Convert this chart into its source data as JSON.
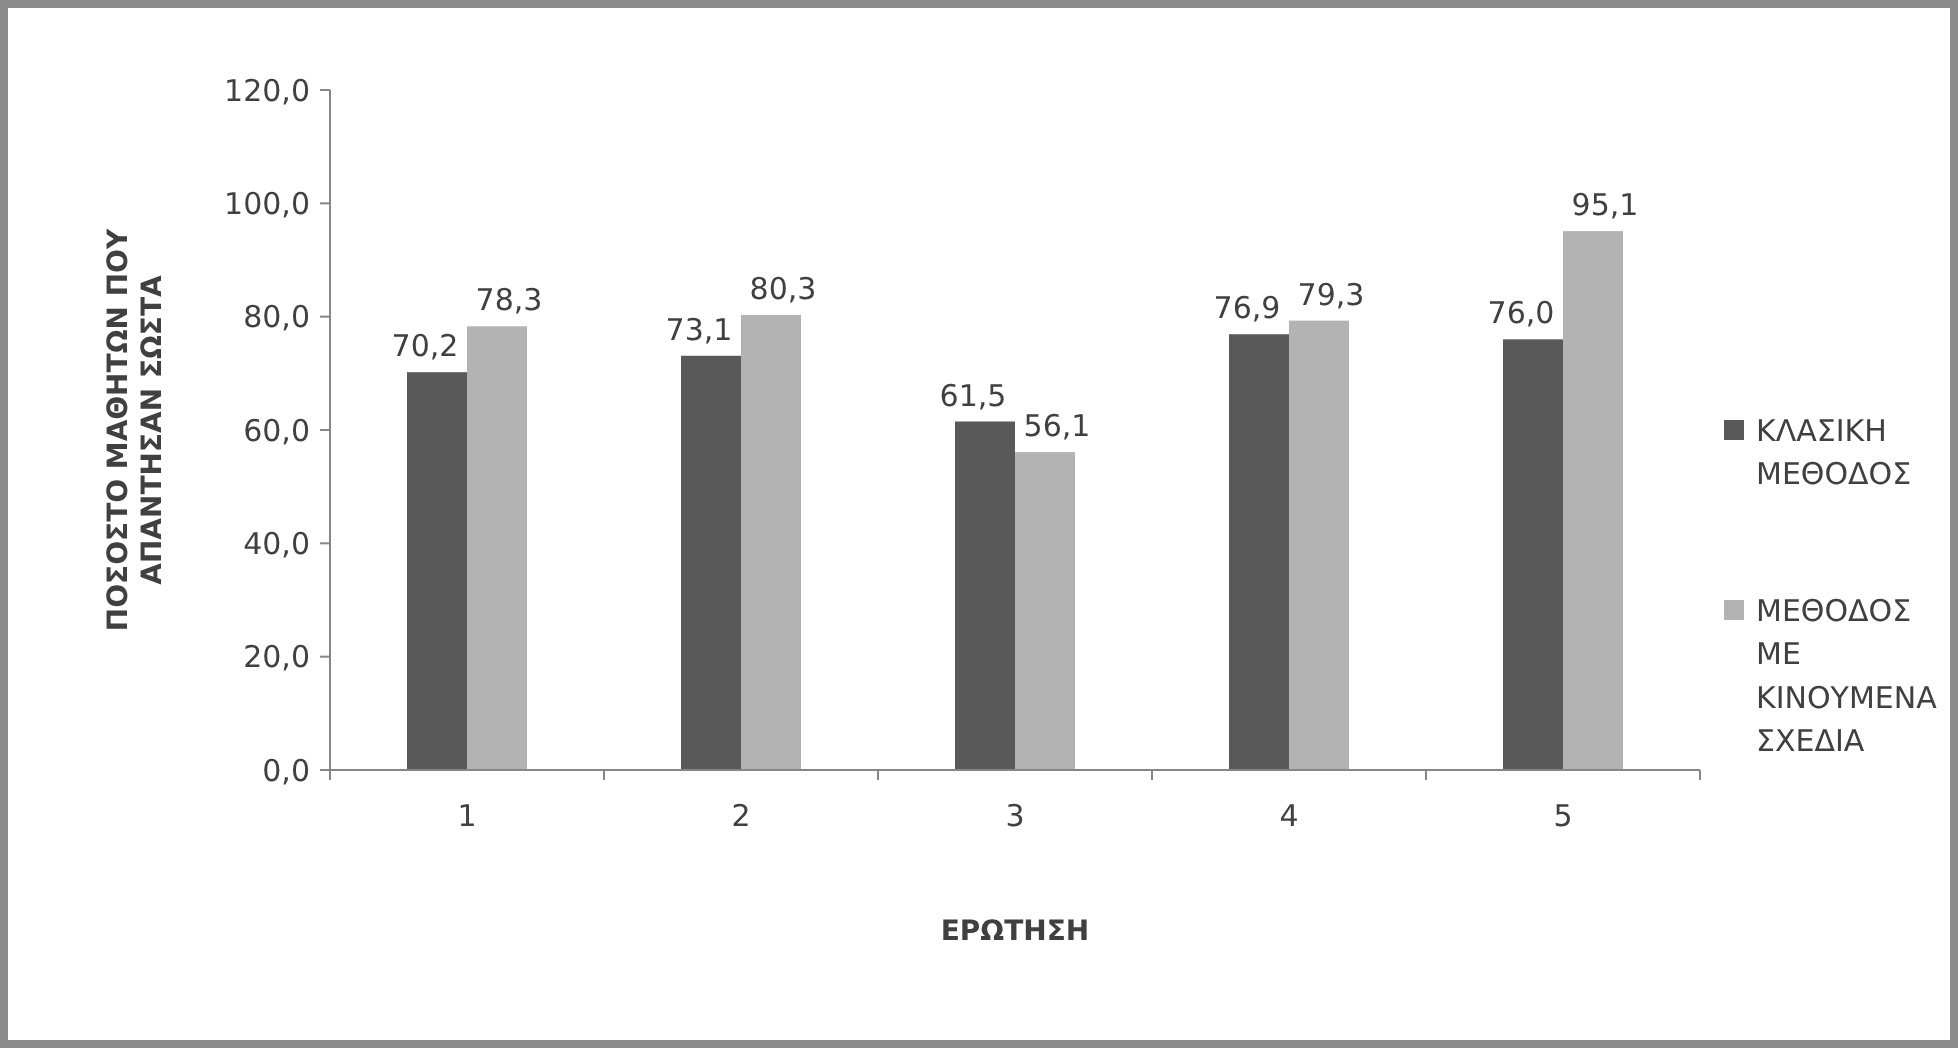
{
  "chart_data": {
    "type": "bar",
    "xlabel": "ΕΡΩΤΗΣΗ",
    "ylabel": "ΠΟΣΟΣΤΟ ΜΑΘΗΤΩΝ ΠΟΥ ΑΠΑΝΤΗΣΑΝ ΣΩΣΤΑ",
    "categories": [
      "1",
      "2",
      "3",
      "4",
      "5"
    ],
    "series": [
      {
        "name": "ΚΛΑΣΙΚΗ ΜΕΘΟΔΟΣ",
        "color": "#595959",
        "values": [
          70.2,
          73.1,
          61.5,
          76.9,
          76.0
        ],
        "value_labels": [
          "70,2",
          "73,1",
          "61,5",
          "76,9",
          "76,0"
        ]
      },
      {
        "name": "ΜΕΘΟΔΟΣ ΜΕ ΚΙΝΟΥΜΕΝΑ ΣΧΕΔΙΑ",
        "color": "#b3b3b3",
        "values": [
          78.3,
          80.3,
          56.1,
          79.3,
          95.1
        ],
        "value_labels": [
          "78,3",
          "80,3",
          "56,1",
          "79,3",
          "95,1"
        ]
      }
    ],
    "ylim": [
      0,
      120
    ],
    "yticks": [
      {
        "value": 0,
        "label": "0,0"
      },
      {
        "value": 20,
        "label": "20,0"
      },
      {
        "value": 40,
        "label": "40,0"
      },
      {
        "value": 60,
        "label": "60,0"
      },
      {
        "value": 80,
        "label": "80,0"
      },
      {
        "value": 100,
        "label": "100,0"
      },
      {
        "value": 120,
        "label": "120,0"
      }
    ],
    "grid": false,
    "legend": "right"
  }
}
